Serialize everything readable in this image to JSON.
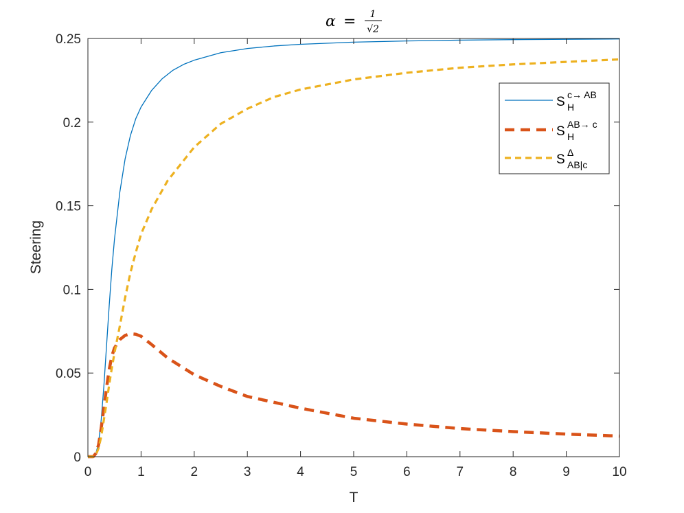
{
  "chart_data": {
    "type": "line",
    "title": "α = 1/√2",
    "xlabel": "T",
    "ylabel": "Steering",
    "xlim": [
      0,
      10
    ],
    "ylim": [
      0,
      0.25
    ],
    "xticks": [
      0,
      1,
      2,
      3,
      4,
      5,
      6,
      7,
      8,
      9,
      10
    ],
    "xtick_labels": [
      "0",
      "1",
      "2",
      "3",
      "4",
      "5",
      "6",
      "7",
      "8",
      "9",
      "10"
    ],
    "yticks": [
      0,
      0.05,
      0.1,
      0.15,
      0.2,
      0.25
    ],
    "ytick_labels": [
      "0",
      "0.05",
      "0.1",
      "0.15",
      "0.2",
      "0.25"
    ],
    "grid": false,
    "legend_position": "top-right",
    "series": [
      {
        "name": "S_H^{c→ AB}",
        "legend_main": "S",
        "legend_sub": "H",
        "legend_sup": "c→ AB",
        "color": "#0072BD",
        "style": "solid",
        "x": [
          0,
          0.1,
          0.15,
          0.2,
          0.25,
          0.3,
          0.35,
          0.4,
          0.45,
          0.5,
          0.6,
          0.7,
          0.8,
          0.9,
          1.0,
          1.2,
          1.4,
          1.6,
          1.8,
          2.0,
          2.5,
          3.0,
          3.5,
          4.0,
          5.0,
          6.0,
          7.0,
          8.0,
          9.0,
          10.0
        ],
        "y": [
          0,
          0,
          0.002,
          0.008,
          0.022,
          0.042,
          0.066,
          0.09,
          0.112,
          0.13,
          0.158,
          0.178,
          0.192,
          0.202,
          0.209,
          0.219,
          0.226,
          0.231,
          0.2345,
          0.237,
          0.2415,
          0.244,
          0.2455,
          0.2465,
          0.2478,
          0.2485,
          0.249,
          0.2493,
          0.2495,
          0.2497
        ]
      },
      {
        "name": "S_H^{AB→ c}",
        "legend_main": "S",
        "legend_sub": "H",
        "legend_sup": "AB→ c",
        "color": "#D95319",
        "style": "dashed-heavy",
        "x": [
          0,
          0.1,
          0.15,
          0.2,
          0.25,
          0.3,
          0.35,
          0.4,
          0.45,
          0.5,
          0.6,
          0.7,
          0.8,
          0.9,
          1.0,
          1.2,
          1.5,
          2.0,
          2.5,
          3.0,
          4.0,
          5.0,
          6.0,
          7.0,
          8.0,
          9.0,
          10.0
        ],
        "y": [
          0,
          0,
          0.002,
          0.007,
          0.017,
          0.029,
          0.041,
          0.052,
          0.06,
          0.065,
          0.07,
          0.0725,
          0.0735,
          0.0732,
          0.072,
          0.067,
          0.059,
          0.049,
          0.042,
          0.036,
          0.029,
          0.023,
          0.0195,
          0.0168,
          0.015,
          0.0135,
          0.0123
        ]
      },
      {
        "name": "S_{AB|c}^{Δ}",
        "legend_main": "S",
        "legend_sub": "AB|c",
        "legend_sup": "Δ",
        "color": "#EDB120",
        "style": "dashed",
        "x": [
          0,
          0.1,
          0.15,
          0.2,
          0.25,
          0.3,
          0.35,
          0.4,
          0.45,
          0.5,
          0.6,
          0.7,
          0.8,
          0.9,
          1.0,
          1.2,
          1.5,
          2.0,
          2.5,
          3.0,
          3.5,
          4.0,
          5.0,
          6.0,
          7.0,
          8.0,
          9.0,
          10.0
        ],
        "y": [
          0,
          0,
          0.001,
          0.005,
          0.012,
          0.022,
          0.032,
          0.043,
          0.053,
          0.062,
          0.078,
          0.095,
          0.11,
          0.122,
          0.133,
          0.148,
          0.165,
          0.185,
          0.199,
          0.208,
          0.215,
          0.2195,
          0.2255,
          0.2295,
          0.2325,
          0.2345,
          0.236,
          0.2375
        ]
      }
    ]
  }
}
